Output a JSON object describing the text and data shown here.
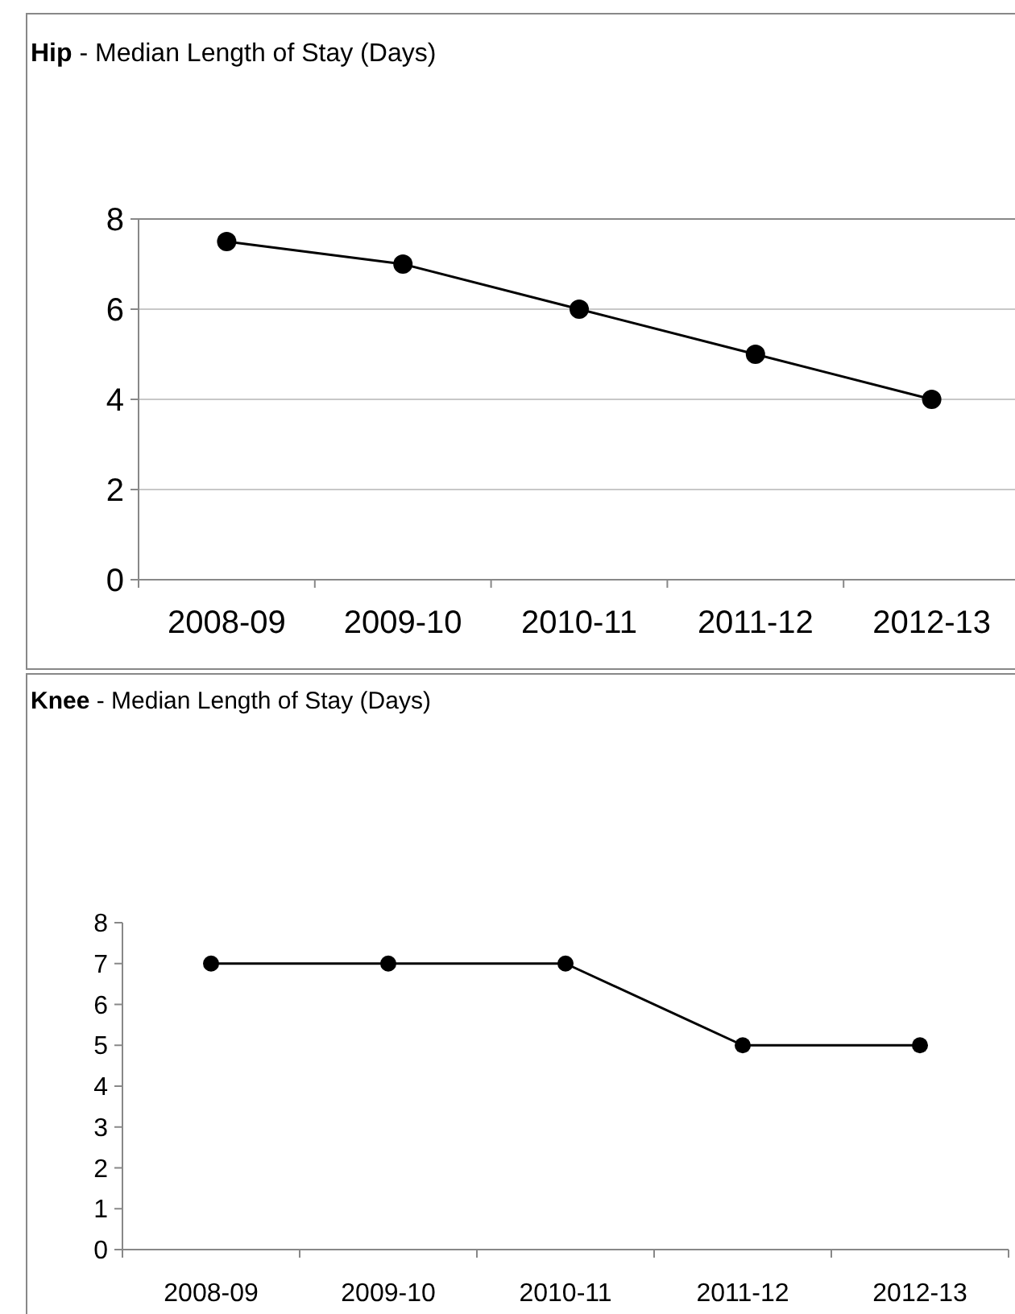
{
  "chart_data": [
    {
      "type": "line",
      "title": "Hip - Median Length of Stay (Days)",
      "categories": [
        "2008-09",
        "2009-10",
        "2010-11",
        "2011-12",
        "2012-13"
      ],
      "values": [
        7.5,
        7,
        6,
        5,
        4
      ],
      "color": "#000000",
      "ylim": [
        0,
        8
      ],
      "yticks": [
        0,
        2,
        4,
        6,
        8
      ],
      "grid": "y",
      "marker": "circle",
      "line_style": "solid"
    },
    {
      "type": "line",
      "title": "Knee - Median Length of Stay (Days)",
      "categories": [
        "2008-09",
        "2009-10",
        "2010-11",
        "2011-12",
        "2012-13"
      ],
      "values": [
        7,
        7,
        7,
        5,
        5
      ],
      "color": "#000000",
      "ylim": [
        0,
        8
      ],
      "yticks": [
        0,
        1,
        2,
        3,
        4,
        5,
        6,
        7,
        8
      ],
      "marker": "circle",
      "line_style": "solid"
    }
  ]
}
